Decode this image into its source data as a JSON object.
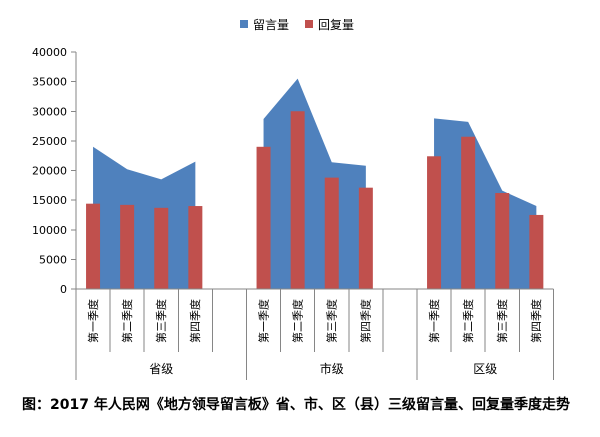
{
  "chart_data": {
    "type": "bar",
    "caption": "图：2017 年人民网《地方领导留言板》省、市、区（县）三级留言量、回复量季度走势",
    "legend": "top",
    "grid": false,
    "ylim": [
      0,
      40000
    ],
    "yticks": [
      0,
      5000,
      10000,
      15000,
      20000,
      25000,
      30000,
      35000,
      40000
    ],
    "groups": [
      {
        "name": "省级",
        "categories": [
          "第一季度",
          "第二季度",
          "第三季度",
          "第四季度"
        ]
      },
      {
        "name": "市级",
        "categories": [
          "第一季度",
          "第二季度",
          "第三季度",
          "第四季度"
        ]
      },
      {
        "name": "区级",
        "categories": [
          "第一季度",
          "第二季度",
          "第三季度",
          "第四季度"
        ]
      }
    ],
    "series": [
      {
        "name": "留言量",
        "type": "area",
        "color": "#4F81BD",
        "values": [
          24000,
          20200,
          18500,
          21500,
          28700,
          35500,
          21400,
          20800,
          28800,
          28200,
          16600,
          14000
        ]
      },
      {
        "name": "回复量",
        "type": "bar",
        "color": "#C0504D",
        "values": [
          14400,
          14200,
          13700,
          14000,
          24000,
          30000,
          18800,
          17100,
          22400,
          25700,
          16200,
          12500
        ]
      }
    ]
  }
}
